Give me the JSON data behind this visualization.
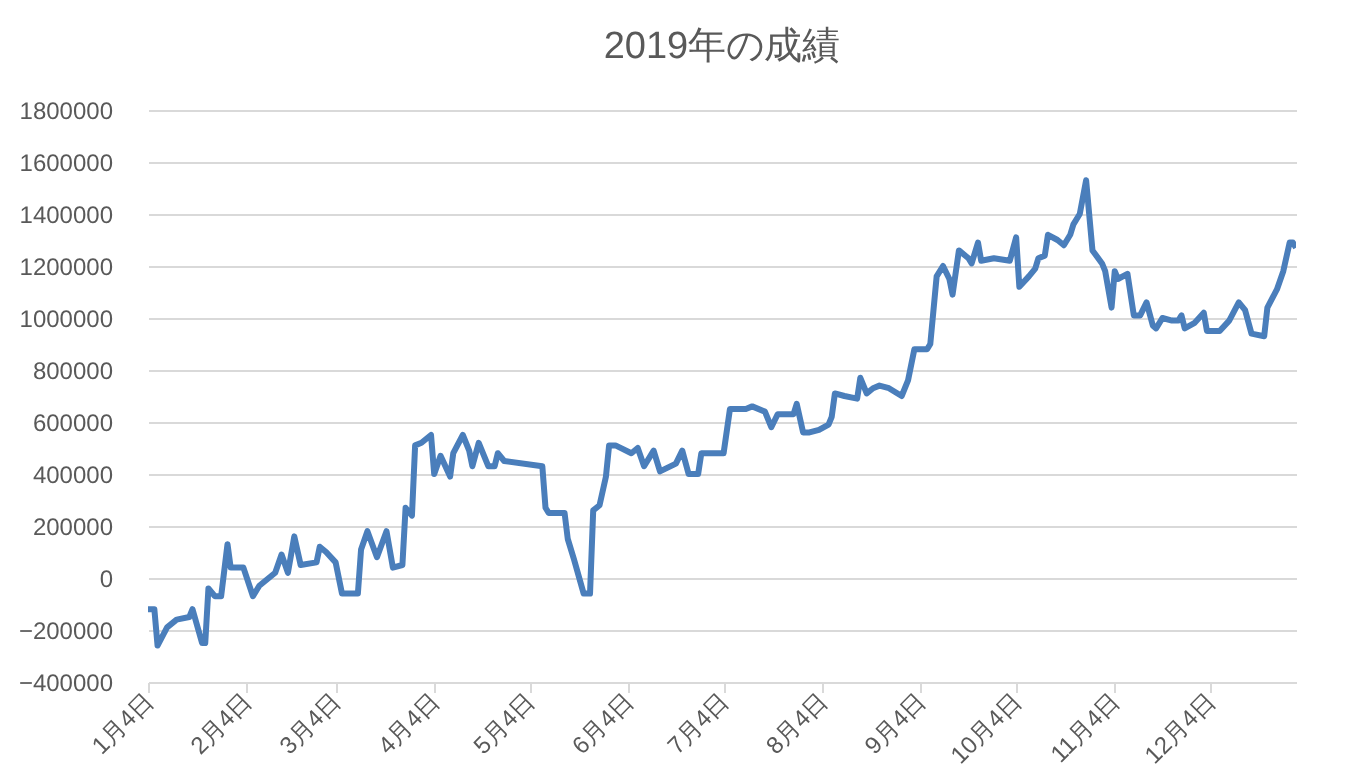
{
  "chart_data": {
    "type": "line",
    "title": "2019年の成績",
    "x": [
      "2019-01-04",
      "2019-01-06",
      "2019-01-07",
      "2019-01-10",
      "2019-01-13",
      "2019-01-17",
      "2019-01-18",
      "2019-01-21",
      "2019-01-22",
      "2019-01-23",
      "2019-01-25",
      "2019-01-27",
      "2019-01-29",
      "2019-01-30",
      "2019-02-03",
      "2019-02-06",
      "2019-02-08",
      "2019-02-13",
      "2019-02-15",
      "2019-02-17",
      "2019-02-19",
      "2019-02-21",
      "2019-02-26",
      "2019-02-27",
      "2019-03-01",
      "2019-03-04",
      "2019-03-06",
      "2019-03-11",
      "2019-03-12",
      "2019-03-14",
      "2019-03-17",
      "2019-03-20",
      "2019-03-22",
      "2019-03-25",
      "2019-03-26",
      "2019-03-28",
      "2019-03-29",
      "2019-03-31",
      "2019-04-03",
      "2019-04-04",
      "2019-04-06",
      "2019-04-09",
      "2019-04-10",
      "2019-04-13",
      "2019-04-15",
      "2019-04-16",
      "2019-04-18",
      "2019-04-21",
      "2019-04-23",
      "2019-04-24",
      "2019-04-26",
      "2019-05-08",
      "2019-05-09",
      "2019-05-10",
      "2019-05-15",
      "2019-05-16",
      "2019-05-18",
      "2019-05-21",
      "2019-05-23",
      "2019-05-24",
      "2019-05-26",
      "2019-05-28",
      "2019-05-29",
      "2019-05-31",
      "2019-06-05",
      "2019-06-07",
      "2019-06-09",
      "2019-06-12",
      "2019-06-14",
      "2019-06-19",
      "2019-06-21",
      "2019-06-23",
      "2019-06-26",
      "2019-06-27",
      "2019-07-04",
      "2019-07-06",
      "2019-07-11",
      "2019-07-13",
      "2019-07-17",
      "2019-07-19",
      "2019-07-21",
      "2019-07-26",
      "2019-07-27",
      "2019-07-29",
      "2019-07-31",
      "2019-08-03",
      "2019-08-06",
      "2019-08-07",
      "2019-08-08",
      "2019-08-11",
      "2019-08-15",
      "2019-08-16",
      "2019-08-18",
      "2019-08-20",
      "2019-08-22",
      "2019-08-25",
      "2019-08-29",
      "2019-08-31",
      "2019-09-02",
      "2019-09-06",
      "2019-09-07",
      "2019-09-09",
      "2019-09-11",
      "2019-09-13",
      "2019-09-14",
      "2019-09-16",
      "2019-09-19",
      "2019-09-20",
      "2019-09-22",
      "2019-09-23",
      "2019-09-27",
      "2019-10-02",
      "2019-10-04",
      "2019-10-05",
      "2019-10-08",
      "2019-10-10",
      "2019-10-11",
      "2019-10-13",
      "2019-10-14",
      "2019-10-17",
      "2019-10-19",
      "2019-10-21",
      "2019-10-22",
      "2019-10-24",
      "2019-10-26",
      "2019-10-28",
      "2019-10-31",
      "2019-11-01",
      "2019-11-03",
      "2019-11-04",
      "2019-11-05",
      "2019-11-08",
      "2019-11-10",
      "2019-11-12",
      "2019-11-14",
      "2019-11-16",
      "2019-11-17",
      "2019-11-19",
      "2019-11-22",
      "2019-11-24",
      "2019-11-25",
      "2019-11-26",
      "2019-11-29",
      "2019-12-02",
      "2019-12-03",
      "2019-12-07",
      "2019-12-10",
      "2019-12-13",
      "2019-12-15",
      "2019-12-17",
      "2019-12-21",
      "2019-12-22",
      "2019-12-25",
      "2019-12-27",
      "2019-12-29",
      "2019-12-30",
      "2019-12-31"
    ],
    "series": [
      {
        "color": "#4a7ebb",
        "values": [
          -120000,
          -120000,
          -260000,
          -190000,
          -160000,
          -150000,
          -120000,
          -250000,
          -250000,
          -40000,
          -70000,
          -70000,
          130000,
          40000,
          40000,
          -70000,
          -30000,
          20000,
          90000,
          20000,
          160000,
          50000,
          60000,
          120000,
          100000,
          60000,
          -60000,
          -60000,
          110000,
          180000,
          80000,
          180000,
          40000,
          50000,
          270000,
          240000,
          510000,
          520000,
          550000,
          400000,
          470000,
          390000,
          480000,
          550000,
          490000,
          430000,
          520000,
          430000,
          430000,
          480000,
          450000,
          430000,
          270000,
          250000,
          250000,
          150000,
          70000,
          -60000,
          -60000,
          260000,
          280000,
          390000,
          510000,
          510000,
          480000,
          500000,
          430000,
          490000,
          410000,
          440000,
          490000,
          400000,
          400000,
          480000,
          480000,
          650000,
          650000,
          660000,
          640000,
          580000,
          630000,
          630000,
          670000,
          560000,
          560000,
          570000,
          590000,
          620000,
          710000,
          700000,
          690000,
          770000,
          710000,
          730000,
          740000,
          730000,
          700000,
          760000,
          880000,
          880000,
          900000,
          1160000,
          1200000,
          1150000,
          1090000,
          1260000,
          1230000,
          1210000,
          1290000,
          1220000,
          1230000,
          1220000,
          1310000,
          1120000,
          1160000,
          1190000,
          1230000,
          1240000,
          1320000,
          1300000,
          1280000,
          1320000,
          1360000,
          1400000,
          1530000,
          1260000,
          1210000,
          1180000,
          1040000,
          1180000,
          1150000,
          1170000,
          1010000,
          1010000,
          1060000,
          970000,
          960000,
          1000000,
          990000,
          990000,
          1010000,
          960000,
          980000,
          1020000,
          950000,
          950000,
          990000,
          1060000,
          1030000,
          940000,
          930000,
          1040000,
          1110000,
          1180000,
          1290000,
          1290000,
          1270000
        ]
      }
    ],
    "xlim": [
      "2019-01-04",
      "2019-12-31"
    ],
    "xticks": [
      {
        "value": "2019-01-04",
        "label": "1月4日"
      },
      {
        "value": "2019-02-04",
        "label": "2月4日"
      },
      {
        "value": "2019-03-04",
        "label": "3月4日"
      },
      {
        "value": "2019-04-04",
        "label": "4月4日"
      },
      {
        "value": "2019-05-04",
        "label": "5月4日"
      },
      {
        "value": "2019-06-04",
        "label": "6月4日"
      },
      {
        "value": "2019-07-04",
        "label": "7月4日"
      },
      {
        "value": "2019-08-04",
        "label": "8月4日"
      },
      {
        "value": "2019-09-04",
        "label": "9月4日"
      },
      {
        "value": "2019-10-04",
        "label": "10月4日"
      },
      {
        "value": "2019-11-04",
        "label": "11月4日"
      },
      {
        "value": "2019-12-04",
        "label": "12月4日"
      }
    ],
    "ylim": [
      -400000,
      1800000
    ],
    "yticks": [
      -400000,
      -200000,
      0,
      200000,
      400000,
      600000,
      800000,
      1000000,
      1200000,
      1400000,
      1600000,
      1800000
    ],
    "grid": "y",
    "line_style": "solid"
  }
}
